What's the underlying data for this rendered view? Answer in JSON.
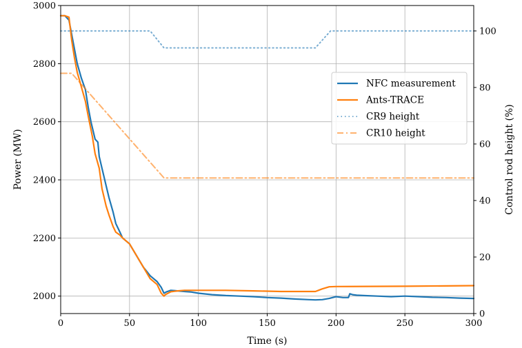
{
  "chart_data": {
    "type": "line",
    "xlabel": "Time (s)",
    "ylabel_left": "Power (MW)",
    "ylabel_right": "Control rod height (%)",
    "xlim": [
      0,
      300
    ],
    "ylim_left": [
      1940,
      3000
    ],
    "ylim_right": [
      0,
      109
    ],
    "xticks": [
      0,
      50,
      100,
      150,
      200,
      250,
      300
    ],
    "yticks_left": [
      2000,
      2200,
      2400,
      2600,
      2800,
      3000
    ],
    "yticks_right": [
      0,
      20,
      40,
      60,
      80,
      100
    ],
    "grid": true,
    "legend_position": "right",
    "series": [
      {
        "name": "NFC measurement",
        "axis": "left",
        "color": "#1f77b4",
        "style": "solid",
        "x": [
          0,
          3,
          6,
          8,
          10,
          12,
          15,
          18,
          20,
          22,
          25,
          27,
          28,
          30,
          33,
          35,
          38,
          40,
          43,
          45,
          50,
          55,
          60,
          65,
          70,
          73,
          75,
          77,
          80,
          85,
          90,
          95,
          100,
          110,
          120,
          130,
          140,
          150,
          160,
          170,
          180,
          185,
          190,
          195,
          200,
          205,
          209,
          210,
          212,
          215,
          220,
          230,
          240,
          250,
          260,
          270,
          280,
          290,
          300
        ],
        "y": [
          2965,
          2965,
          2950,
          2900,
          2850,
          2800,
          2750,
          2710,
          2650,
          2600,
          2540,
          2530,
          2480,
          2440,
          2380,
          2340,
          2290,
          2250,
          2220,
          2200,
          2180,
          2140,
          2100,
          2070,
          2050,
          2030,
          2010,
          2015,
          2020,
          2018,
          2016,
          2014,
          2010,
          2005,
          2002,
          2000,
          1998,
          1995,
          1993,
          1990,
          1988,
          1987,
          1988,
          1992,
          1998,
          1995,
          1995,
          2008,
          2005,
          2003,
          2002,
          2000,
          1998,
          2000,
          1998,
          1996,
          1995,
          1993,
          1992
        ]
      },
      {
        "name": "Ants-TRACE",
        "axis": "left",
        "color": "#ff7f0e",
        "style": "solid",
        "x": [
          0,
          3,
          6,
          8,
          10,
          12,
          15,
          18,
          20,
          23,
          25,
          28,
          30,
          33,
          35,
          38,
          40,
          43,
          45,
          50,
          55,
          60,
          65,
          70,
          73,
          75,
          76,
          78,
          80,
          85,
          90,
          100,
          120,
          140,
          160,
          185,
          190,
          195,
          200,
          250,
          300
        ],
        "y": [
          2965,
          2965,
          2960,
          2880,
          2820,
          2770,
          2720,
          2670,
          2620,
          2550,
          2490,
          2440,
          2370,
          2310,
          2280,
          2240,
          2220,
          2210,
          2200,
          2180,
          2140,
          2100,
          2060,
          2040,
          2010,
          2000,
          2005,
          2010,
          2015,
          2018,
          2020,
          2020,
          2020,
          2018,
          2016,
          2016,
          2025,
          2032,
          2033,
          2034,
          2036
        ]
      },
      {
        "name": "CR9 height",
        "axis": "right",
        "color": "#1f77b4",
        "style": "dotted",
        "x": [
          0,
          65,
          75,
          185,
          196,
          300
        ],
        "y": [
          100,
          100,
          94,
          94,
          100,
          100
        ]
      },
      {
        "name": "CR10 height",
        "axis": "right",
        "color": "#ff7f0e",
        "style": "dashdot",
        "x": [
          0,
          8,
          75,
          300
        ],
        "y": [
          85,
          85,
          48,
          48
        ]
      }
    ]
  }
}
